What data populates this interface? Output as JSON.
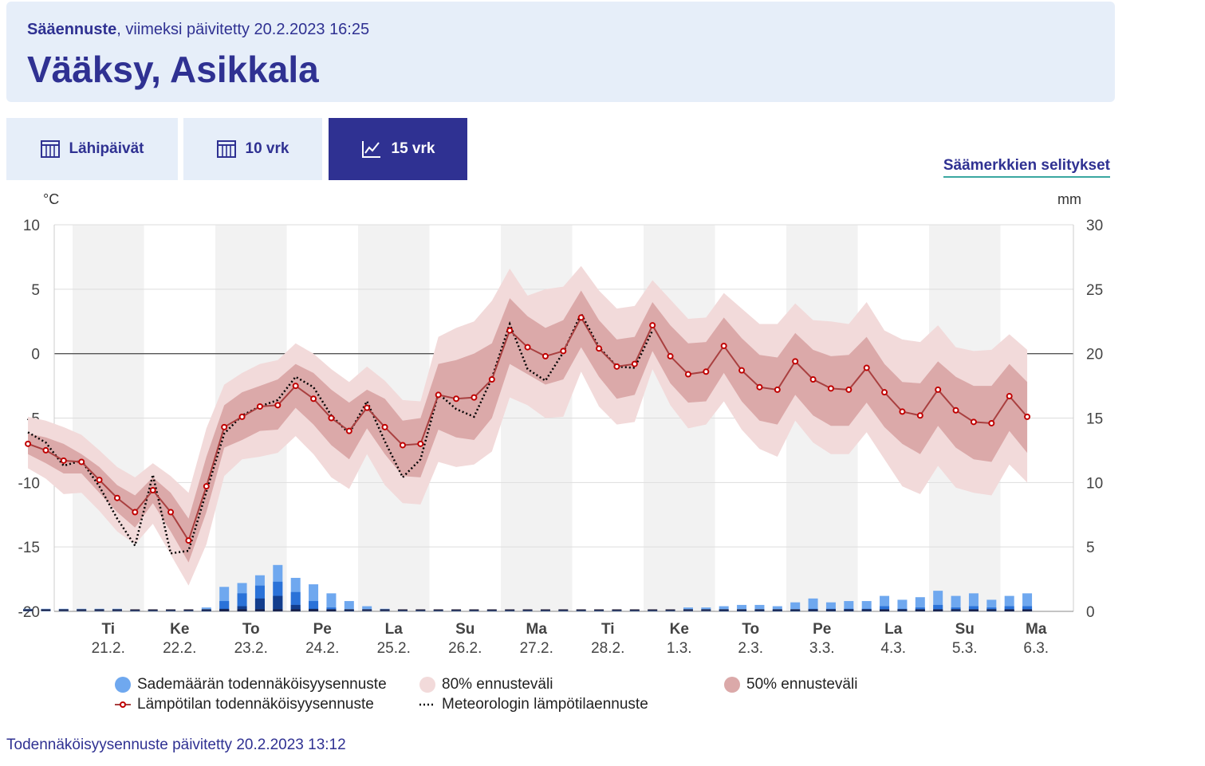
{
  "header": {
    "product": "Sääennuste",
    "updated": ", viimeksi päivitetty 20.2.2023 16:25",
    "location": "Vääksy, Asikkala"
  },
  "tabs": [
    {
      "label": "Lähipäivät",
      "icon": "calendar-grid-icon",
      "active": false
    },
    {
      "label": "10 vrk",
      "icon": "calendar-grid-icon",
      "active": false
    },
    {
      "label": "15 vrk",
      "icon": "line-chart-icon",
      "active": true
    }
  ],
  "legend_link": "Säämerkkien selitykset",
  "units": {
    "left": "°C",
    "right": "mm"
  },
  "legend": {
    "precip": "Sademäärän todennäköisyysennuste",
    "band80": "80% ennusteväli",
    "band50": "50% ennusteväli",
    "temp": "Lämpötilan todennäköisyysennuste",
    "meteo": "Meteorologin lämpötilaennuste"
  },
  "footer": "Todennäköisyysennuste päivitetty 20.2.2023 13:12",
  "colors": {
    "brand": "#2f3192",
    "band80": "#f2dada",
    "band50": "#dba9a9",
    "temp_line": "#a94040",
    "temp_marker": "#c00000",
    "precip_light": "#6fa8ef",
    "precip_mid": "#2a72d8",
    "precip_dark": "#123d8c",
    "weekend_shade": "#f2f2f2"
  },
  "chart_data": {
    "type": "line",
    "ylim_left": [
      -20,
      10
    ],
    "ylim_right": [
      0,
      30
    ],
    "yticks_left": [
      10,
      5,
      0,
      -5,
      -10,
      -15,
      -20
    ],
    "yticks_right": [
      30,
      25,
      20,
      15,
      10,
      5,
      0
    ],
    "x_start_hours": 3,
    "x_step_hours": 6,
    "day_labels": [
      {
        "day": "Ti",
        "date": "21.2."
      },
      {
        "day": "Ke",
        "date": "22.2."
      },
      {
        "day": "To",
        "date": "23.2."
      },
      {
        "day": "Pe",
        "date": "24.2."
      },
      {
        "day": "La",
        "date": "25.2."
      },
      {
        "day": "Su",
        "date": "26.2."
      },
      {
        "day": "Ma",
        "date": "27.2."
      },
      {
        "day": "Ti",
        "date": "28.2."
      },
      {
        "day": "Ke",
        "date": "1.3."
      },
      {
        "day": "To",
        "date": "2.3."
      },
      {
        "day": "Pe",
        "date": "3.3."
      },
      {
        "day": "La",
        "date": "4.3."
      },
      {
        "day": "Su",
        "date": "5.3."
      },
      {
        "day": "Ma",
        "date": "6.3."
      }
    ],
    "temperature_median": [
      -7.0,
      -7.5,
      -8.3,
      -8.4,
      -9.8,
      -11.2,
      -12.3,
      -10.6,
      -12.3,
      -14.5,
      -10.3,
      -5.7,
      -4.9,
      -4.1,
      -4.0,
      -2.5,
      -3.5,
      -5.0,
      -6.0,
      -4.2,
      -5.7,
      -7.1,
      -7.0,
      -3.2,
      -3.5,
      -3.4,
      -2.0,
      1.8,
      0.5,
      -0.2,
      0.2,
      2.8,
      0.4,
      -1.0,
      -0.8,
      2.2,
      -0.2,
      -1.6,
      -1.4,
      0.6,
      -1.3,
      -2.6,
      -2.8,
      -0.6,
      -2.0,
      -2.7,
      -2.8,
      -1.1,
      -3.0,
      -4.5,
      -4.8,
      -2.8,
      -4.4,
      -5.3,
      -5.4,
      -3.3,
      -4.9
    ],
    "band50_upper": [
      -6.2,
      -6.5,
      -7.0,
      -7.8,
      -8.8,
      -10.2,
      -11.0,
      -9.6,
      -10.8,
      -12.8,
      -8.0,
      -4.0,
      -3.0,
      -2.5,
      -2.0,
      -0.8,
      -1.5,
      -2.8,
      -3.8,
      -2.8,
      -3.5,
      -5.2,
      -5.0,
      -0.8,
      -0.5,
      0.0,
      0.8,
      4.3,
      2.9,
      2.0,
      2.6,
      4.9,
      2.6,
      1.1,
      1.3,
      4.0,
      2.2,
      0.8,
      0.9,
      2.8,
      1.2,
      -0.1,
      -0.3,
      1.6,
      0.3,
      -0.2,
      -0.1,
      1.3,
      -0.8,
      -2.2,
      -2.3,
      -0.6,
      -1.8,
      -2.5,
      -2.5,
      -0.8,
      -2.2
    ],
    "band50_lower": [
      -7.8,
      -8.5,
      -9.3,
      -9.3,
      -10.8,
      -12.3,
      -13.5,
      -11.6,
      -13.8,
      -16.2,
      -12.3,
      -7.3,
      -6.7,
      -6.0,
      -5.9,
      -4.2,
      -5.5,
      -7.1,
      -8.2,
      -5.8,
      -7.8,
      -9.5,
      -9.6,
      -5.9,
      -6.5,
      -6.7,
      -5.0,
      -0.8,
      -1.6,
      -2.4,
      -2.0,
      0.5,
      -1.8,
      -3.5,
      -3.2,
      0.2,
      -2.3,
      -3.8,
      -3.7,
      -1.5,
      -3.7,
      -5.2,
      -5.5,
      -3.2,
      -4.8,
      -5.6,
      -5.6,
      -3.8,
      -5.7,
      -7.0,
      -7.8,
      -5.6,
      -7.3,
      -8.2,
      -8.4,
      -6.0,
      -7.7
    ],
    "band80_upper": [
      -4.9,
      -5.2,
      -5.7,
      -6.3,
      -7.5,
      -8.8,
      -9.6,
      -8.5,
      -9.5,
      -10.8,
      -5.8,
      -2.4,
      -1.5,
      -0.8,
      -0.5,
      0.8,
      0.0,
      -1.2,
      -2.2,
      -1.0,
      -2.1,
      -3.6,
      -3.7,
      1.3,
      2.0,
      2.5,
      4.1,
      6.6,
      4.5,
      5.0,
      5.2,
      6.8,
      4.9,
      3.5,
      3.7,
      5.7,
      4.2,
      2.7,
      2.8,
      4.7,
      3.5,
      2.3,
      2.3,
      3.9,
      2.6,
      2.5,
      2.3,
      4.0,
      1.8,
      1.1,
      0.9,
      2.2,
      0.5,
      0.2,
      0.3,
      1.5,
      0.3
    ],
    "band80_lower": [
      -8.9,
      -9.7,
      -10.9,
      -10.8,
      -12.2,
      -13.8,
      -14.8,
      -13.2,
      -15.6,
      -18.0,
      -14.8,
      -9.5,
      -8.2,
      -8.0,
      -7.7,
      -6.4,
      -7.8,
      -9.6,
      -10.5,
      -7.8,
      -10.2,
      -11.6,
      -11.7,
      -8.4,
      -8.8,
      -8.6,
      -7.6,
      -3.4,
      -4.0,
      -5.0,
      -4.9,
      -1.4,
      -4.1,
      -5.5,
      -5.3,
      -1.2,
      -4.0,
      -5.8,
      -5.5,
      -3.7,
      -5.9,
      -7.4,
      -8.0,
      -5.2,
      -6.9,
      -7.8,
      -7.8,
      -6.1,
      -8.2,
      -10.3,
      -10.9,
      -8.7,
      -10.4,
      -10.8,
      -11.0,
      -8.6,
      -10.0
    ],
    "meteorologist_forecast": [
      -6.1,
      -6.9,
      -8.7,
      -8.3,
      -10.3,
      -12.8,
      -14.9,
      -9.4,
      -15.5,
      -15.3,
      -10.7,
      -6.2,
      -4.8,
      -4.1,
      -3.6,
      -1.8,
      -2.6,
      -4.8,
      -6.2,
      -3.7,
      -6.8,
      -9.6,
      -8.2,
      -3.1,
      -4.3,
      -4.9,
      -1.9,
      2.3,
      -1.2,
      -2.1,
      0.1,
      3.1,
      0.5,
      -1.0,
      -1.1,
      1.8
    ],
    "precip_mm": [
      0.2,
      0.2,
      0.2,
      0.2,
      0.2,
      0.2,
      0.1,
      0.1,
      0.1,
      0.1,
      0.3,
      1.9,
      2.2,
      2.8,
      3.6,
      2.6,
      2.1,
      1.4,
      0.8,
      0.4,
      0.2,
      0.1,
      0.1,
      0.1,
      0.1,
      0.1,
      0.1,
      0.1,
      0.1,
      0.1,
      0.1,
      0.1,
      0.1,
      0.1,
      0.1,
      0.1,
      0.1,
      0.3,
      0.3,
      0.4,
      0.5,
      0.5,
      0.4,
      0.7,
      1.0,
      0.7,
      0.8,
      0.8,
      1.2,
      0.9,
      1.1,
      1.6,
      1.2,
      1.4,
      0.9,
      1.2,
      1.4
    ],
    "precip_mid_mm": [
      0.0,
      0.0,
      0.0,
      0.0,
      0.0,
      0.0,
      0.0,
      0.0,
      0.0,
      0.0,
      0.1,
      0.8,
      1.4,
      2.0,
      2.3,
      1.5,
      0.8,
      0.3,
      0.1,
      0.0,
      0.0,
      0.0,
      0.0,
      0.0,
      0.0,
      0.0,
      0.0,
      0.0,
      0.0,
      0.0,
      0.0,
      0.0,
      0.0,
      0.0,
      0.0,
      0.0,
      0.0,
      0.0,
      0.0,
      0.1,
      0.1,
      0.1,
      0.1,
      0.1,
      0.2,
      0.2,
      0.2,
      0.2,
      0.4,
      0.2,
      0.3,
      0.5,
      0.3,
      0.4,
      0.3,
      0.4,
      0.4
    ],
    "precip_dark_mm": [
      0.0,
      0.0,
      0.0,
      0.0,
      0.0,
      0.0,
      0.0,
      0.0,
      0.0,
      0.0,
      0.0,
      0.2,
      0.4,
      1.0,
      1.2,
      0.5,
      0.2,
      0.1,
      0.0,
      0.0,
      0.0,
      0.0,
      0.0,
      0.0,
      0.0,
      0.0,
      0.0,
      0.0,
      0.0,
      0.0,
      0.0,
      0.0,
      0.0,
      0.0,
      0.0,
      0.0,
      0.0,
      0.0,
      0.0,
      0.0,
      0.0,
      0.0,
      0.0,
      0.0,
      0.0,
      0.0,
      0.0,
      0.0,
      0.1,
      0.0,
      0.1,
      0.1,
      0.0,
      0.1,
      0.0,
      0.1,
      0.1
    ]
  }
}
